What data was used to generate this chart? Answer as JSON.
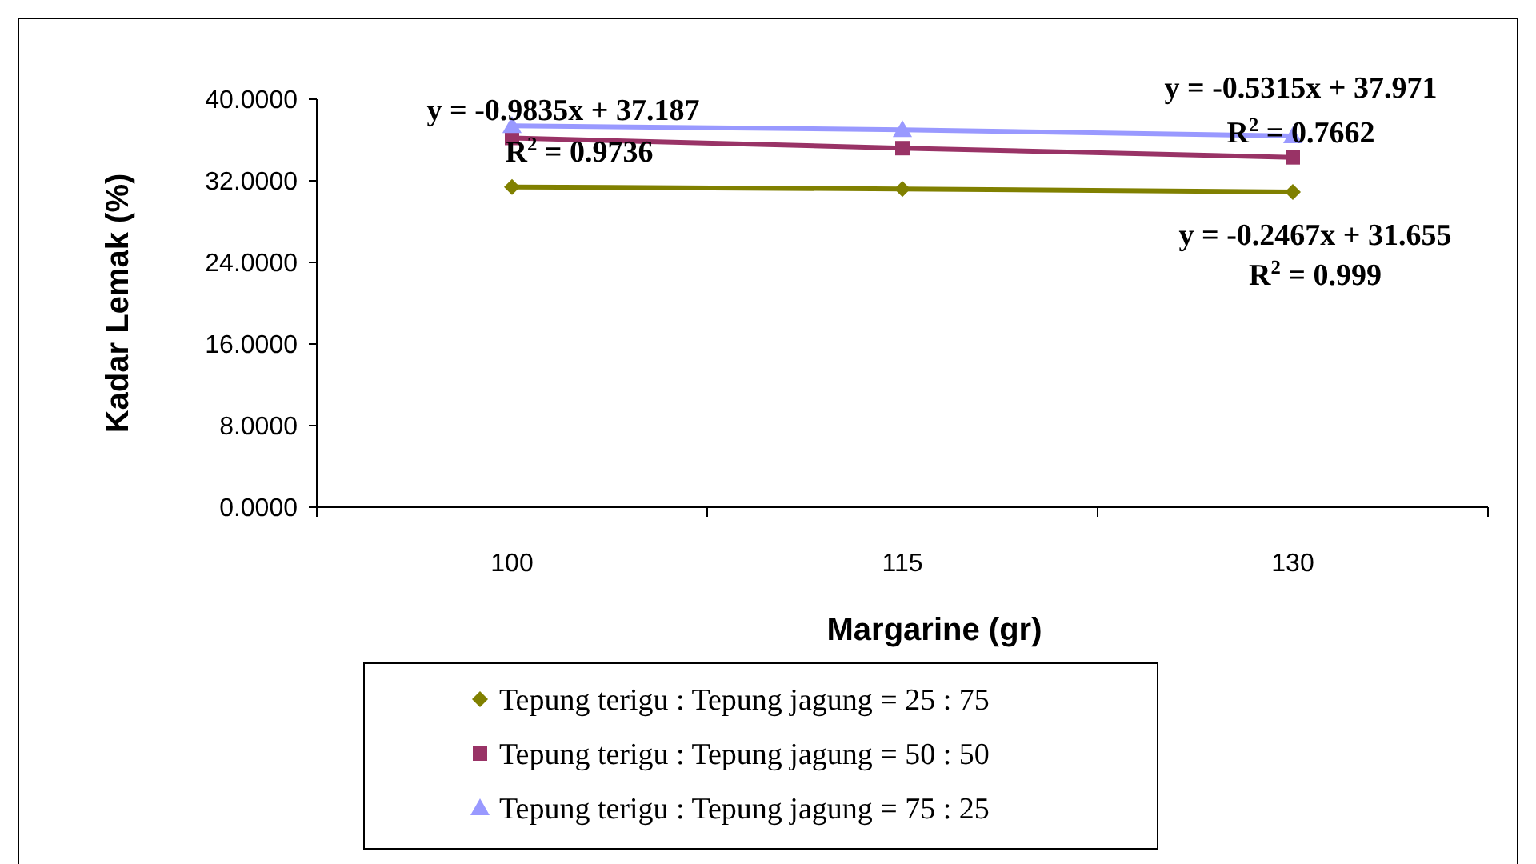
{
  "chart_data": {
    "type": "line",
    "xlabel": "Margarine (gr)",
    "ylabel": "Kadar Lemak (%)",
    "categories": [
      "100",
      "115",
      "130"
    ],
    "series": [
      {
        "name": "Tepung terigu : Tepung jagung = 25 : 75",
        "color": "#808000",
        "marker": "diamond",
        "values": [
          31.4,
          31.2,
          30.9
        ]
      },
      {
        "name": "Tepung terigu : Tepung jagung = 50 : 50",
        "color": "#993366",
        "marker": "square",
        "values": [
          36.2,
          35.2,
          34.3
        ]
      },
      {
        "name": "Tepung terigu : Tepung jagung = 75 : 25",
        "color": "#9999ff",
        "marker": "triangle",
        "values": [
          37.4,
          37.0,
          36.4
        ]
      }
    ],
    "ylim": [
      0,
      40
    ],
    "yticks": [
      {
        "value": 0,
        "label": "0.0000"
      },
      {
        "value": 8,
        "label": "8.0000"
      },
      {
        "value": 16,
        "label": "16.0000"
      },
      {
        "value": 24,
        "label": "24.0000"
      },
      {
        "value": 32,
        "label": "32.0000"
      },
      {
        "value": 40,
        "label": "40.0000"
      }
    ],
    "grid": false,
    "legend": "bottom",
    "annotations": [
      "y = -0.9835x + 37.187",
      "R$^{2}$ = 0.9736",
      "y = -0.5315x + 37.971",
      "R$^{2}$ = 0.7662",
      "y = -0.2467x + 31.655",
      "R$^{2}$ = 0.999"
    ]
  }
}
